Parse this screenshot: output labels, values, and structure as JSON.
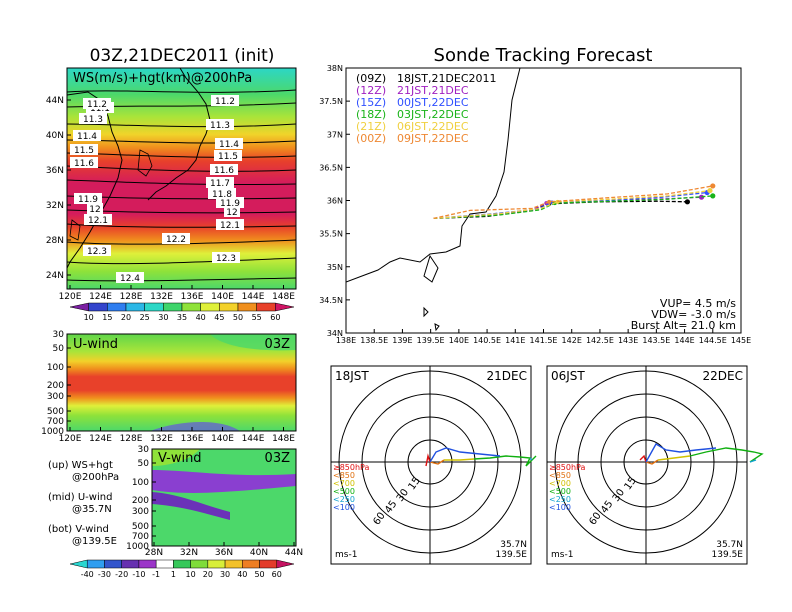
{
  "left_title": "03Z,21DEC2011 (init)",
  "right_title": "Sonde Tracking Forecast",
  "top_map": {
    "panel_label": "WS(m/s)+hgt(km)@200hPa",
    "y_ticks": [
      "44N",
      "40N",
      "36N",
      "32N",
      "28N",
      "24N"
    ],
    "x_ticks": [
      "120E",
      "124E",
      "128E",
      "132E",
      "136E",
      "140E",
      "144E",
      "148E"
    ],
    "contour_labels": [
      "11.1",
      "11.2",
      "11.2",
      "11.3",
      "11.3",
      "11.4",
      "11.4",
      "11.5",
      "11.5",
      "11.6",
      "11.6",
      "11.7",
      "11.8",
      "11.9",
      "11.9",
      "12",
      "12",
      "12.1",
      "12.1",
      "12.2",
      "12.3",
      "12.3",
      "12.4"
    ],
    "colorbar_labels": [
      "10",
      "15",
      "20",
      "25",
      "30",
      "35",
      "40",
      "45",
      "50",
      "55",
      "60"
    ],
    "colorbar_colors": [
      "#7b1fa2",
      "#3344cc",
      "#2f7ef0",
      "#2bb7e6",
      "#2cd7c6",
      "#3ed56b",
      "#8fe23a",
      "#dff03a",
      "#f3d12a",
      "#f08f1d",
      "#e8412a",
      "#cf1464"
    ]
  },
  "u_wind": {
    "panel_label": "U-wind",
    "time_label": "03Z",
    "y_ticks": [
      "30",
      "50",
      "100",
      "200",
      "300",
      "500",
      "700",
      "1000"
    ],
    "x_ticks": [
      "120E",
      "124E",
      "128E",
      "132E",
      "136E",
      "140E",
      "144E",
      "148E"
    ]
  },
  "v_wind": {
    "panel_label": "V-wind",
    "time_label": "03Z",
    "y_ticks": [
      "30",
      "50",
      "100",
      "200",
      "300",
      "500",
      "700",
      "1000"
    ],
    "x_ticks": [
      "28N",
      "32N",
      "36N",
      "40N",
      "44N"
    ]
  },
  "bottom_colorbar_labels": [
    "-40",
    "-30",
    "-20",
    "-10",
    "-1",
    "1",
    "10",
    "20",
    "30",
    "40",
    "50",
    "60"
  ],
  "bottom_colorbar_colors": [
    "#2ad6d0",
    "#2f9ef0",
    "#3355cc",
    "#6630b0",
    "#9b35c8",
    "#ffffff",
    "#36c85a",
    "#7fdc3a",
    "#d8ee3a",
    "#f2c12a",
    "#ee7e22",
    "#e33c2a",
    "#c41260"
  ],
  "legend_notes": {
    "up": "(up) WS+hgt",
    "up2": "@200hPa",
    "mid": "(mid) U-wind",
    "mid2": "@35.7N",
    "bot": "(bot) V-wind",
    "bot2": "@139.5E"
  },
  "track_map": {
    "y_ticks": [
      "38N",
      "37.5N",
      "37N",
      "36.5N",
      "36N",
      "35.5N",
      "35N",
      "34.5N",
      "34N"
    ],
    "x_ticks": [
      "138E",
      "138.5E",
      "139E",
      "139.5E",
      "140E",
      "140.5E",
      "141E",
      "141.5E",
      "142E",
      "142.5E",
      "143E",
      "143.5E",
      "144E",
      "144.5E",
      "145E"
    ],
    "legend": [
      {
        "utc": "(09Z)",
        "jst": "18JST,21DEC2011",
        "color": "#000000"
      },
      {
        "utc": "(12Z)",
        "jst": "21JST,21DEC",
        "color": "#a020c0"
      },
      {
        "utc": "(15Z)",
        "jst": "00JST,22DEC",
        "color": "#3050ff"
      },
      {
        "utc": "(18Z)",
        "jst": "03JST,22DEC",
        "color": "#19b319"
      },
      {
        "utc": "(21Z)",
        "jst": "06JST,22DEC",
        "color": "#f0d040"
      },
      {
        "utc": "(00Z)",
        "jst": "09JST,22DEC",
        "color": "#ee8833"
      }
    ],
    "params": {
      "vup": "VUP= 4.5 m/s",
      "vdw": "VDW= -3.0 m/s",
      "burst": "Burst Alt= 21.0 km"
    }
  },
  "chart_data": [
    {
      "type": "line",
      "title": "Sonde Tracking Forecast",
      "xlim": [
        138,
        145
      ],
      "ylim": [
        34,
        38
      ],
      "series": [
        {
          "name": "(09Z) 18JST,21DEC2011",
          "x": [
            139.55,
            140.5,
            141.3,
            141.6,
            142.5,
            143.5,
            144.05
          ],
          "y": [
            35.73,
            35.76,
            35.85,
            35.95,
            35.98,
            35.99,
            35.98
          ]
        },
        {
          "name": "(12Z) 21JST,21DEC",
          "x": [
            139.55,
            140.5,
            141.3,
            141.55,
            142.5,
            143.5,
            144.3
          ],
          "y": [
            35.73,
            35.78,
            35.86,
            35.96,
            36.0,
            36.02,
            36.05
          ]
        },
        {
          "name": "(15Z) 00JST,22DEC",
          "x": [
            139.55,
            140.6,
            141.4,
            141.65,
            142.6,
            143.6,
            144.4
          ],
          "y": [
            35.73,
            35.8,
            35.87,
            35.97,
            36.0,
            36.05,
            36.12
          ]
        },
        {
          "name": "(18Z) 03JST,22DEC",
          "x": [
            139.55,
            140.7,
            141.45,
            141.7,
            142.7,
            143.7,
            144.5
          ],
          "y": [
            35.73,
            35.78,
            35.86,
            35.96,
            35.99,
            36.02,
            36.07
          ]
        },
        {
          "name": "(21Z) 06JST,22DEC",
          "x": [
            139.55,
            140.7,
            141.45,
            141.75,
            142.7,
            143.7,
            144.45
          ],
          "y": [
            35.73,
            35.8,
            35.88,
            35.98,
            36.02,
            36.07,
            36.15
          ]
        },
        {
          "name": "(00Z) 09JST,22DEC",
          "x": [
            139.55,
            140.2,
            141.3,
            141.6,
            142.6,
            143.7,
            144.5
          ],
          "y": [
            35.73,
            35.85,
            35.88,
            35.98,
            36.04,
            36.1,
            36.22
          ]
        }
      ]
    }
  ],
  "polar_left": {
    "time_label": "18JST",
    "date_label": "21DEC",
    "ring_labels": [
      "15",
      "30",
      "45",
      "60"
    ],
    "pressure_legend": [
      "≥850hPa",
      "<850",
      "<700",
      "<500",
      "<250",
      "<100"
    ],
    "pressure_colors": [
      "#e01010",
      "#e07010",
      "#d0c000",
      "#10b010",
      "#10a0d0",
      "#2050e0"
    ],
    "unit": "ms-1",
    "loc_lat": "35.7N",
    "loc_lon": "139.5E"
  },
  "polar_right": {
    "time_label": "06JST",
    "date_label": "22DEC",
    "ring_labels": [
      "15",
      "30",
      "45",
      "60"
    ],
    "pressure_legend": [
      "≥850hPa",
      "<850",
      "<700",
      "<500",
      "<250",
      "<100"
    ],
    "pressure_colors": [
      "#e01010",
      "#e07010",
      "#d0c000",
      "#10b010",
      "#10a0d0",
      "#2050e0"
    ],
    "unit": "ms-1",
    "loc_lat": "35.7N",
    "loc_lon": "139.5E"
  }
}
